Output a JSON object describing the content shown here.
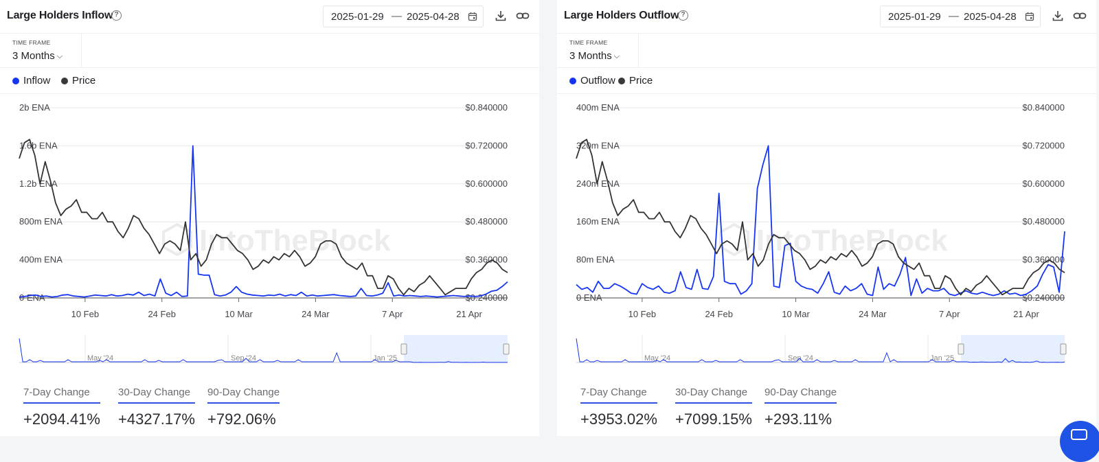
{
  "colors": {
    "flow": "#1535f0",
    "price": "#333333",
    "accent": "#2f4fe0",
    "navigator_fill": "#dbe8ff"
  },
  "panels": [
    {
      "title": "Large Holders Inflow",
      "help_icon": "question-circle-icon",
      "date_from": "2025-01-29",
      "date_sep": "—",
      "date_to": "2025-04-28",
      "icons": [
        "calendar-icon",
        "download-icon",
        "link-icon"
      ],
      "timeframe_label": "TIME FRAME",
      "timeframe_value": "3 Months",
      "legend": [
        "Inflow",
        "Price"
      ],
      "watermark": "IntoTheBlock",
      "navigator_labels": [
        "May '24",
        "Sep '24",
        "Jan '25"
      ],
      "stats": [
        {
          "label": "7-Day Change",
          "value": "+2094.41%"
        },
        {
          "label": "30-Day Change",
          "value": "+4327.17%"
        },
        {
          "label": "90-Day Change",
          "value": "+792.06%"
        }
      ]
    },
    {
      "title": "Large Holders Outflow",
      "help_icon": "question-circle-icon",
      "date_from": "2025-01-29",
      "date_sep": "—",
      "date_to": "2025-04-28",
      "icons": [
        "calendar-icon",
        "download-icon",
        "link-icon"
      ],
      "timeframe_label": "TIME FRAME",
      "timeframe_value": "3 Months",
      "legend": [
        "Outflow",
        "Price"
      ],
      "watermark": "IntoTheBlock",
      "navigator_labels": [
        "May '24",
        "Sep '24",
        "Jan '25"
      ],
      "stats": [
        {
          "label": "7-Day Change",
          "value": "+3953.02%"
        },
        {
          "label": "30-Day Change",
          "value": "+7099.15%"
        },
        {
          "label": "90-Day Change",
          "value": "+293.11%"
        }
      ]
    }
  ],
  "chart_data": [
    {
      "type": "line",
      "title": "Large Holders Inflow",
      "x_range": [
        "2025-01-29",
        "2025-04-28"
      ],
      "x_ticks": [
        "10 Feb",
        "24 Feb",
        "10 Mar",
        "24 Mar",
        "7 Apr",
        "21 Apr"
      ],
      "y_left_ticks": [
        "0 ENA",
        "400m ENA",
        "800m ENA",
        "1.2b ENA",
        "1.6b ENA",
        "2b ENA"
      ],
      "y_left_range": [
        0,
        2000000000
      ],
      "y_right_ticks": [
        "$0.240000",
        "$0.360000",
        "$0.480000",
        "$0.600000",
        "$0.720000",
        "$0.840000"
      ],
      "y_right_range": [
        0.24,
        0.84
      ],
      "legend_position": "top-left",
      "series": [
        {
          "name": "Inflow",
          "axis": "left",
          "values": [
            10,
            15,
            25,
            30,
            15,
            20,
            10,
            15,
            30,
            35,
            20,
            15,
            10,
            20,
            30,
            25,
            20,
            35,
            20,
            25,
            40,
            30,
            60,
            25,
            40,
            20,
            200,
            50,
            25,
            60,
            15,
            20,
            1600,
            250,
            240,
            240,
            35,
            20,
            30,
            60,
            120,
            60,
            40,
            30,
            25,
            20,
            30,
            25,
            40,
            20,
            35,
            25,
            60,
            20,
            30,
            20,
            25,
            30,
            35,
            25,
            20,
            15,
            20,
            100,
            25,
            20,
            30,
            50,
            160,
            20,
            30,
            20,
            25,
            20,
            15,
            20,
            15,
            10,
            15,
            20,
            25,
            20,
            15,
            20,
            15,
            20,
            40,
            70,
            80,
            120,
            170
          ]
        },
        {
          "name": "Price",
          "axis": "right",
          "values": [
            0.68,
            0.73,
            0.74,
            0.69,
            0.6,
            0.67,
            0.61,
            0.54,
            0.5,
            0.52,
            0.53,
            0.55,
            0.51,
            0.51,
            0.49,
            0.49,
            0.51,
            0.48,
            0.48,
            0.45,
            0.43,
            0.46,
            0.5,
            0.49,
            0.46,
            0.44,
            0.41,
            0.38,
            0.41,
            0.42,
            0.41,
            0.39,
            0.48,
            0.36,
            0.38,
            0.34,
            0.36,
            0.41,
            0.44,
            0.43,
            0.43,
            0.41,
            0.39,
            0.38,
            0.36,
            0.33,
            0.34,
            0.36,
            0.35,
            0.37,
            0.36,
            0.38,
            0.37,
            0.39,
            0.37,
            0.34,
            0.35,
            0.37,
            0.41,
            0.42,
            0.42,
            0.41,
            0.37,
            0.35,
            0.34,
            0.33,
            0.35,
            0.31,
            0.31,
            0.27,
            0.27,
            0.31,
            0.3,
            0.27,
            0.25,
            0.27,
            0.26,
            0.28,
            0.29,
            0.31,
            0.29,
            0.27,
            0.25,
            0.26,
            0.27,
            0.27,
            0.27,
            0.3,
            0.32,
            0.33,
            0.35,
            0.36,
            0.35,
            0.33,
            0.32
          ]
        }
      ]
    },
    {
      "type": "line",
      "title": "Large Holders Outflow",
      "x_range": [
        "2025-01-29",
        "2025-04-28"
      ],
      "x_ticks": [
        "10 Feb",
        "24 Feb",
        "10 Mar",
        "24 Mar",
        "7 Apr",
        "21 Apr"
      ],
      "y_left_ticks": [
        "0 ENA",
        "80m ENA",
        "160m ENA",
        "240m ENA",
        "320m ENA",
        "400m ENA"
      ],
      "y_left_range": [
        0,
        400000000
      ],
      "y_right_ticks": [
        "$0.240000",
        "$0.360000",
        "$0.480000",
        "$0.600000",
        "$0.720000",
        "$0.840000"
      ],
      "y_right_range": [
        0.24,
        0.84
      ],
      "legend_position": "top-left",
      "series": [
        {
          "name": "Outflow",
          "axis": "left",
          "values": [
            28,
            18,
            22,
            12,
            35,
            20,
            20,
            30,
            25,
            18,
            10,
            8,
            30,
            22,
            18,
            25,
            12,
            10,
            15,
            55,
            22,
            18,
            60,
            20,
            18,
            45,
            220,
            35,
            30,
            30,
            8,
            15,
            30,
            230,
            280,
            320,
            25,
            22,
            110,
            115,
            35,
            25,
            20,
            18,
            10,
            30,
            55,
            12,
            8,
            25,
            15,
            20,
            30,
            8,
            5,
            65,
            18,
            30,
            25,
            50,
            85,
            5,
            40,
            10,
            20,
            15,
            15,
            20,
            8,
            5,
            10,
            15,
            10,
            8,
            12,
            8,
            5,
            8,
            15,
            8,
            10,
            5,
            8,
            15,
            25,
            50,
            70,
            65,
            12,
            140
          ]
        },
        {
          "name": "Price",
          "axis": "right",
          "values": [
            0.68,
            0.73,
            0.74,
            0.69,
            0.6,
            0.67,
            0.61,
            0.54,
            0.5,
            0.52,
            0.53,
            0.55,
            0.51,
            0.51,
            0.49,
            0.49,
            0.51,
            0.48,
            0.48,
            0.45,
            0.43,
            0.46,
            0.5,
            0.49,
            0.46,
            0.44,
            0.41,
            0.38,
            0.41,
            0.42,
            0.41,
            0.39,
            0.48,
            0.36,
            0.38,
            0.34,
            0.36,
            0.41,
            0.44,
            0.43,
            0.43,
            0.41,
            0.39,
            0.38,
            0.36,
            0.33,
            0.34,
            0.36,
            0.35,
            0.37,
            0.36,
            0.38,
            0.37,
            0.39,
            0.37,
            0.34,
            0.35,
            0.37,
            0.41,
            0.42,
            0.42,
            0.41,
            0.37,
            0.35,
            0.34,
            0.33,
            0.35,
            0.31,
            0.31,
            0.27,
            0.27,
            0.31,
            0.3,
            0.27,
            0.25,
            0.27,
            0.26,
            0.28,
            0.29,
            0.31,
            0.29,
            0.27,
            0.25,
            0.26,
            0.27,
            0.27,
            0.27,
            0.3,
            0.32,
            0.33,
            0.35,
            0.36,
            0.35,
            0.33,
            0.32
          ]
        }
      ]
    }
  ]
}
